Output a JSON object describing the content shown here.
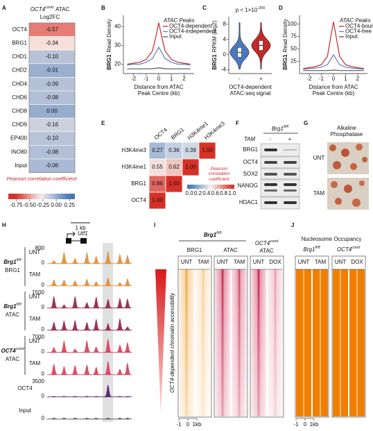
{
  "panels": {
    "A": {
      "letter": "A",
      "title": {
        "gene": "OCT4",
        "sup": "cond",
        "rest": "ATAC"
      },
      "subtitle": "Log2FC",
      "rows": [
        "OCT4",
        "BRG1",
        "CHD1",
        "CHD2",
        "CHD4",
        "CHD6",
        "CHD8",
        "CHD9",
        "EP400",
        "INO80",
        "Input"
      ],
      "values": [
        -0.57,
        -0.34,
        -0.1,
        -0.01,
        -0.09,
        -0.08,
        0,
        -0.16,
        -0.1,
        -0.08,
        -0.06
      ],
      "value_labels": [
        "-0.57",
        "-0.34",
        "-0.10",
        "-0.01",
        "-0.09",
        "-0.08",
        "0.00",
        "-0.16",
        "-0.10",
        "-0.08",
        "-0.06"
      ],
      "colorbar": {
        "title": "Pearson correlation coefficient",
        "lim": [
          -0.9,
          0.35
        ],
        "ticks": [
          -0.75,
          {
            "value": -0.5,
            "label": "-0.50"
          },
          -0.25,
          {
            "value": 0,
            "label": "0.00"
          },
          0.25
        ]
      }
    },
    "B": {
      "letter": "B",
      "type": "line",
      "ylabel": {
        "bold": "BRG1",
        "rest": "Read Density"
      },
      "xlabel": [
        "Distance from ATAC",
        "Peak Centre (kb)"
      ],
      "xlim": [
        -2.8,
        2.8
      ],
      "ylim": [
        15,
        46
      ],
      "xticks": [
        -2,
        -1,
        0,
        1,
        2
      ],
      "yticks": [
        20,
        30,
        40
      ],
      "legend_title": "ATAC Peaks",
      "x": [
        -2.5,
        -2,
        -1.5,
        -1,
        -0.5,
        -0.25,
        0,
        0.25,
        0.5,
        1,
        1.5,
        2,
        2.5
      ],
      "series": [
        {
          "name": "OCT4-dependent",
          "color": "#c62828",
          "values": [
            20,
            20.5,
            21,
            22.5,
            27,
            34,
            42,
            34,
            27,
            22.5,
            21,
            20.5,
            20
          ]
        },
        {
          "name": "OCT4-independent",
          "color": "#5b7fc4",
          "values": [
            19.5,
            20,
            20,
            21,
            23,
            26,
            29,
            26,
            23,
            21,
            20,
            20,
            19.5
          ]
        },
        {
          "name": "Input",
          "color": "#555555",
          "values": [
            17.5,
            17.5,
            17.5,
            17.5,
            17.6,
            17.8,
            18,
            17.8,
            17.6,
            17.5,
            17.5,
            17.5,
            17.5
          ]
        }
      ]
    },
    "C": {
      "letter": "C",
      "type": "violin",
      "p_value": "p < 1×10",
      "p_exp": "-200",
      "ylabel": {
        "bold": "BRG1",
        "rest": "RPKM (log2)"
      },
      "ylim": [
        -5,
        10
      ],
      "yticks": [
        -4,
        0,
        4,
        8
      ],
      "categories": [
        "-",
        "+"
      ],
      "colors": [
        "#4a78c2",
        "#c62828"
      ],
      "medians": [
        0.6,
        2.4
      ],
      "xlabel": [
        "OCT4-dependent",
        "ATAC-seq signal"
      ]
    },
    "D": {
      "letter": "D",
      "type": "line",
      "ylabel": {
        "bold": "BRG1",
        "rest": "Read Density"
      },
      "xlabel": [
        "Distance from ATAC",
        "Peak Centre (kb)"
      ],
      "xlim": [
        -2.8,
        2.8
      ],
      "ylim": [
        0,
        118
      ],
      "xticks": [
        -2,
        -1,
        0,
        1,
        2
      ],
      "yticks": [
        25,
        50,
        75,
        100
      ],
      "legend_title": "ATAC Peaks",
      "x": [
        -2.5,
        -2,
        -1.5,
        -1,
        -0.5,
        -0.25,
        0,
        0.25,
        0.5,
        1,
        1.5,
        2,
        2.5
      ],
      "series": [
        {
          "name": "OCT4-bound",
          "color": "#c62828",
          "values": [
            10,
            12,
            14,
            18,
            35,
            70,
            105,
            70,
            35,
            18,
            14,
            12,
            10
          ]
        },
        {
          "name": "OCT4-free",
          "color": "#5b7fc4",
          "values": [
            9,
            10,
            11,
            13,
            18,
            28,
            38,
            28,
            18,
            13,
            11,
            10,
            9
          ]
        },
        {
          "name": "Input",
          "color": "#555555",
          "values": [
            6,
            6,
            6,
            6,
            6.2,
            6.6,
            7,
            6.6,
            6.2,
            6,
            6,
            6,
            6
          ]
        }
      ]
    },
    "E": {
      "letter": "E",
      "columns": [
        "OCT4",
        "BRG1",
        "H3K4me1",
        "H3K4me3"
      ],
      "rows": [
        "H3K4me3",
        "H3K4me1",
        "BRG1",
        "OCT4"
      ],
      "values": [
        [
          0.27,
          0.36,
          0.39,
          1
        ],
        [
          0.55,
          0.62,
          1
        ],
        [
          0.86,
          1
        ],
        [
          1
        ]
      ],
      "value_labels": [
        [
          "0.27",
          "0.36",
          "0.39",
          "1.00"
        ],
        [
          "0.55",
          "0.62",
          "1.00"
        ],
        [
          "0.86",
          "1.00"
        ],
        [
          "1.00"
        ]
      ],
      "colorbar": {
        "title": "Pearson correlation coefficient",
        "lim": [
          -0.05,
          1.05
        ],
        "ticks": [
          {
            "value": 0,
            "label": "0.0"
          },
          0.2,
          0.4,
          0.6,
          0.8,
          {
            "value": 1,
            "label": "1.0"
          }
        ]
      }
    },
    "F": {
      "letter": "F",
      "genotype": "Brg1",
      "genotype_sup": "fl/fl",
      "treatment": "TAM",
      "lanes": [
        "-",
        "+"
      ],
      "proteins": [
        "BRG1",
        "OCT4",
        "SOX2",
        "NANOG",
        "HDAC1"
      ]
    },
    "G": {
      "letter": "G",
      "title": "Alkaline Phosphatase",
      "rows": [
        "UNT",
        "TAM"
      ]
    },
    "H": {
      "letter": "H",
      "scale": "1 kb",
      "gene": "Utf1",
      "groups": [
        {
          "genotype": "Brg1",
          "sup": "fl/fl",
          "label": "BRG1",
          "color": "#e08a2c",
          "tracks": [
            {
              "name": "UNT",
              "max": 800,
              "zero": 0
            },
            {
              "name": "TAM",
              "zero": 0
            }
          ]
        },
        {
          "genotype": "Brg1",
          "sup": "fl/fl",
          "label": "ATAC",
          "color": "#8e2043",
          "tracks": [
            {
              "name": "UNT",
              "max": 1500,
              "zero": 0
            },
            {
              "name": "TAM",
              "zero": 0
            }
          ]
        },
        {
          "genotype": "OCT4",
          "sup": "cond",
          "label": "ATAC",
          "color": "#d93a55",
          "tracks": [
            {
              "name": "UNT",
              "max": 7000,
              "zero": 0
            },
            {
              "name": "TAM",
              "zero": 0
            }
          ]
        },
        {
          "label": "OCT4",
          "color": "#4a1a6b",
          "tracks": [
            {
              "max": 3500,
              "zero": 0
            }
          ]
        },
        {
          "label": "Input",
          "color": "#444444",
          "tracks": [
            {
              "zero": 0
            }
          ]
        }
      ]
    },
    "I": {
      "letter": "I",
      "genotype": "Brg1",
      "sup": "fl/fl",
      "groups": [
        {
          "label": "BRG1",
          "color": "#f0a030",
          "columns": [
            "UNT",
            "TAM"
          ]
        },
        {
          "label": "ATAC",
          "color": "#c8103e",
          "columns": [
            "UNT",
            "TAM"
          ]
        },
        {
          "genotype": "OCT4",
          "sup": "cond",
          "label": "ATAC",
          "color": "#c8103e",
          "columns": [
            "UNT",
            "DOX"
          ]
        }
      ],
      "side_label": "OCT4-dependent chromatin accessibility",
      "xlim": [
        -1,
        1
      ],
      "xticks": [
        -1,
        0,
        {
          "value": 1,
          "label": "1kb"
        }
      ]
    },
    "J": {
      "letter": "J",
      "title": "Nucleosome Occupancy",
      "color": "#f07f00",
      "groups": [
        {
          "genotype": "Brg1",
          "sup": "fl/fl",
          "columns": [
            "UNT",
            "TAM"
          ]
        },
        {
          "genotype": "OCT4",
          "sup": "cond",
          "columns": [
            "UNT",
            "DOX"
          ]
        }
      ],
      "xlim": [
        -1,
        1
      ],
      "xticks": [
        -1,
        0,
        {
          "value": 1,
          "label": "1kb"
        }
      ]
    }
  }
}
